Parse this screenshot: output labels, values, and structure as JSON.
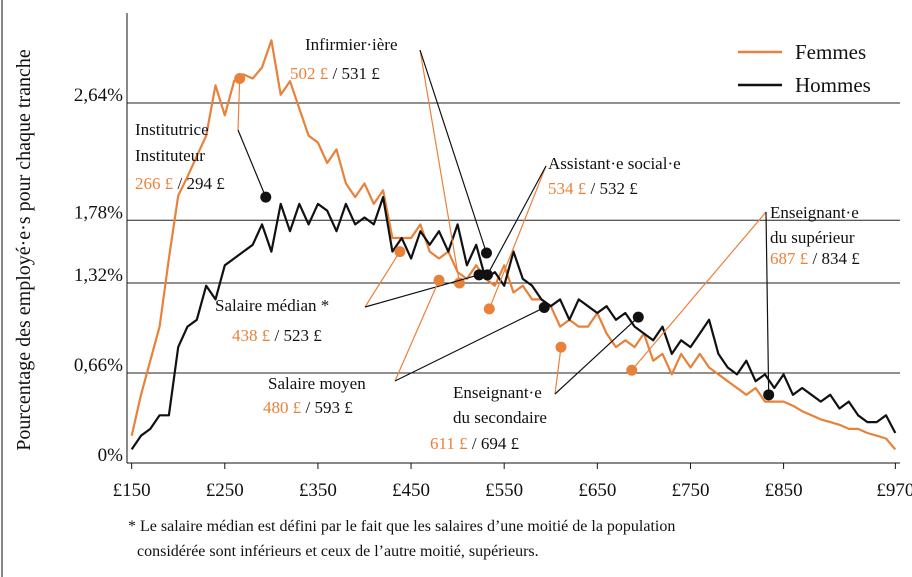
{
  "chart_data": {
    "type": "line",
    "ylabel": "Pourcentage des employé·e·s pour chaque tranche",
    "x": [
      150,
      160,
      170,
      180,
      190,
      200,
      210,
      220,
      230,
      240,
      250,
      260,
      270,
      280,
      290,
      300,
      310,
      320,
      330,
      340,
      350,
      360,
      370,
      380,
      390,
      400,
      410,
      420,
      430,
      440,
      450,
      460,
      470,
      480,
      490,
      500,
      510,
      520,
      530,
      540,
      550,
      560,
      570,
      580,
      590,
      600,
      610,
      620,
      630,
      640,
      650,
      660,
      670,
      680,
      690,
      700,
      710,
      720,
      730,
      740,
      750,
      760,
      770,
      780,
      790,
      800,
      810,
      820,
      830,
      840,
      850,
      860,
      870,
      880,
      890,
      900,
      910,
      920,
      930,
      940,
      950,
      960,
      970
    ],
    "series": [
      {
        "name": "Femmes",
        "color": "#e8823a",
        "values": [
          0.2,
          0.5,
          0.75,
          1.0,
          1.5,
          1.96,
          2.1,
          2.25,
          2.4,
          2.77,
          2.55,
          2.8,
          2.85,
          2.82,
          2.9,
          3.1,
          2.7,
          2.8,
          2.6,
          2.4,
          2.35,
          2.2,
          2.3,
          2.05,
          1.95,
          2.05,
          1.9,
          2.0,
          1.65,
          1.65,
          1.65,
          1.75,
          1.55,
          1.5,
          1.55,
          1.4,
          1.35,
          1.45,
          1.35,
          1.3,
          1.45,
          1.25,
          1.3,
          1.2,
          1.2,
          1.15,
          1.0,
          1.05,
          1.0,
          1.0,
          1.1,
          0.95,
          0.85,
          0.9,
          0.85,
          0.95,
          0.75,
          0.8,
          0.65,
          0.8,
          0.7,
          0.8,
          0.7,
          0.65,
          0.6,
          0.55,
          0.5,
          0.55,
          0.45,
          0.45,
          0.45,
          0.42,
          0.38,
          0.35,
          0.32,
          0.3,
          0.28,
          0.25,
          0.25,
          0.22,
          0.2,
          0.18,
          0.1
        ]
      },
      {
        "name": "Hommes",
        "color": "#111111",
        "values": [
          0.1,
          0.2,
          0.25,
          0.35,
          0.35,
          0.85,
          1.0,
          1.05,
          1.3,
          1.2,
          1.45,
          1.5,
          1.55,
          1.6,
          1.75,
          1.55,
          1.9,
          1.7,
          1.9,
          1.75,
          1.9,
          1.85,
          1.7,
          1.9,
          1.75,
          1.8,
          1.75,
          1.95,
          1.55,
          1.65,
          1.5,
          1.7,
          1.6,
          1.7,
          1.55,
          1.75,
          1.45,
          1.6,
          1.35,
          1.4,
          1.3,
          1.55,
          1.35,
          1.3,
          1.2,
          1.15,
          1.2,
          1.05,
          1.2,
          1.15,
          1.1,
          1.15,
          1.05,
          1.1,
          1.0,
          0.95,
          0.9,
          1.0,
          0.8,
          0.9,
          0.85,
          0.95,
          1.05,
          0.8,
          0.7,
          0.65,
          0.75,
          0.6,
          0.65,
          0.55,
          0.65,
          0.5,
          0.55,
          0.5,
          0.45,
          0.5,
          0.4,
          0.45,
          0.35,
          0.3,
          0.3,
          0.35,
          0.22
        ]
      }
    ],
    "xlim": [
      145,
      975
    ],
    "xticks": [
      {
        "value": 150,
        "label": "£150"
      },
      {
        "value": 250,
        "label": "£250"
      },
      {
        "value": 350,
        "label": "£350"
      },
      {
        "value": 450,
        "label": "£450"
      },
      {
        "value": 550,
        "label": "£550"
      },
      {
        "value": 650,
        "label": "£650"
      },
      {
        "value": 750,
        "label": "£750"
      },
      {
        "value": 850,
        "label": "£850"
      },
      {
        "value": 970,
        "label": "£970"
      }
    ],
    "ylim": [
      0,
      3.3
    ],
    "yticks": [
      {
        "value": 0,
        "label": "0%"
      },
      {
        "value": 0.66,
        "label": "0,66%"
      },
      {
        "value": 1.32,
        "label": "1,32%"
      },
      {
        "value": 1.78,
        "label": "1,78%"
      },
      {
        "value": 2.64,
        "label": "2,64%"
      }
    ],
    "grid": true,
    "legend": "top-right",
    "separator": " / ",
    "annotations": [
      {
        "name": [
          "Institutrice",
          "Instituteur"
        ],
        "women": {
          "value": 266,
          "label": "266 £",
          "y": 2.82
        },
        "men": {
          "value": 294,
          "label": "294 £",
          "y": 1.95
        }
      },
      {
        "name": [
          "Infirmier·ière"
        ],
        "women": {
          "value": 502,
          "label": "502 £",
          "y": 1.32
        },
        "men": {
          "value": 531,
          "label": "531 £",
          "y": 1.54
        }
      },
      {
        "name": [
          "Assistant·e social·e"
        ],
        "women": {
          "value": 534,
          "label": "534 £",
          "y": 1.13
        },
        "men": {
          "value": 532,
          "label": "532 £",
          "y": 1.38
        }
      },
      {
        "name": [
          "Enseignant·e",
          "du supérieur"
        ],
        "women": {
          "value": 687,
          "label": "687 £",
          "y": 0.68
        },
        "men": {
          "value": 834,
          "label": "834 £",
          "y": 0.5
        }
      },
      {
        "name": [
          "Salaire médian *"
        ],
        "women": {
          "value": 438,
          "label": "438 £",
          "y": 1.55
        },
        "men": {
          "value": 523,
          "label": "523 £",
          "y": 1.38
        }
      },
      {
        "name": [
          "Salaire moyen"
        ],
        "women": {
          "value": 480,
          "label": "480 £",
          "y": 1.34
        },
        "men": {
          "value": 593,
          "label": "593 £",
          "y": 1.14
        }
      },
      {
        "name": [
          "Enseignant·e",
          "du secondaire"
        ],
        "women": {
          "value": 611,
          "label": "611 £",
          "y": 0.85
        },
        "men": {
          "value": 694,
          "label": "694 £",
          "y": 1.07
        }
      }
    ],
    "footnote": [
      "* Le salaire médian est défini par le fait que les salaires d’une moitié de la population",
      "considérée sont inférieurs et ceux de l’autre moitié, supérieurs."
    ]
  }
}
